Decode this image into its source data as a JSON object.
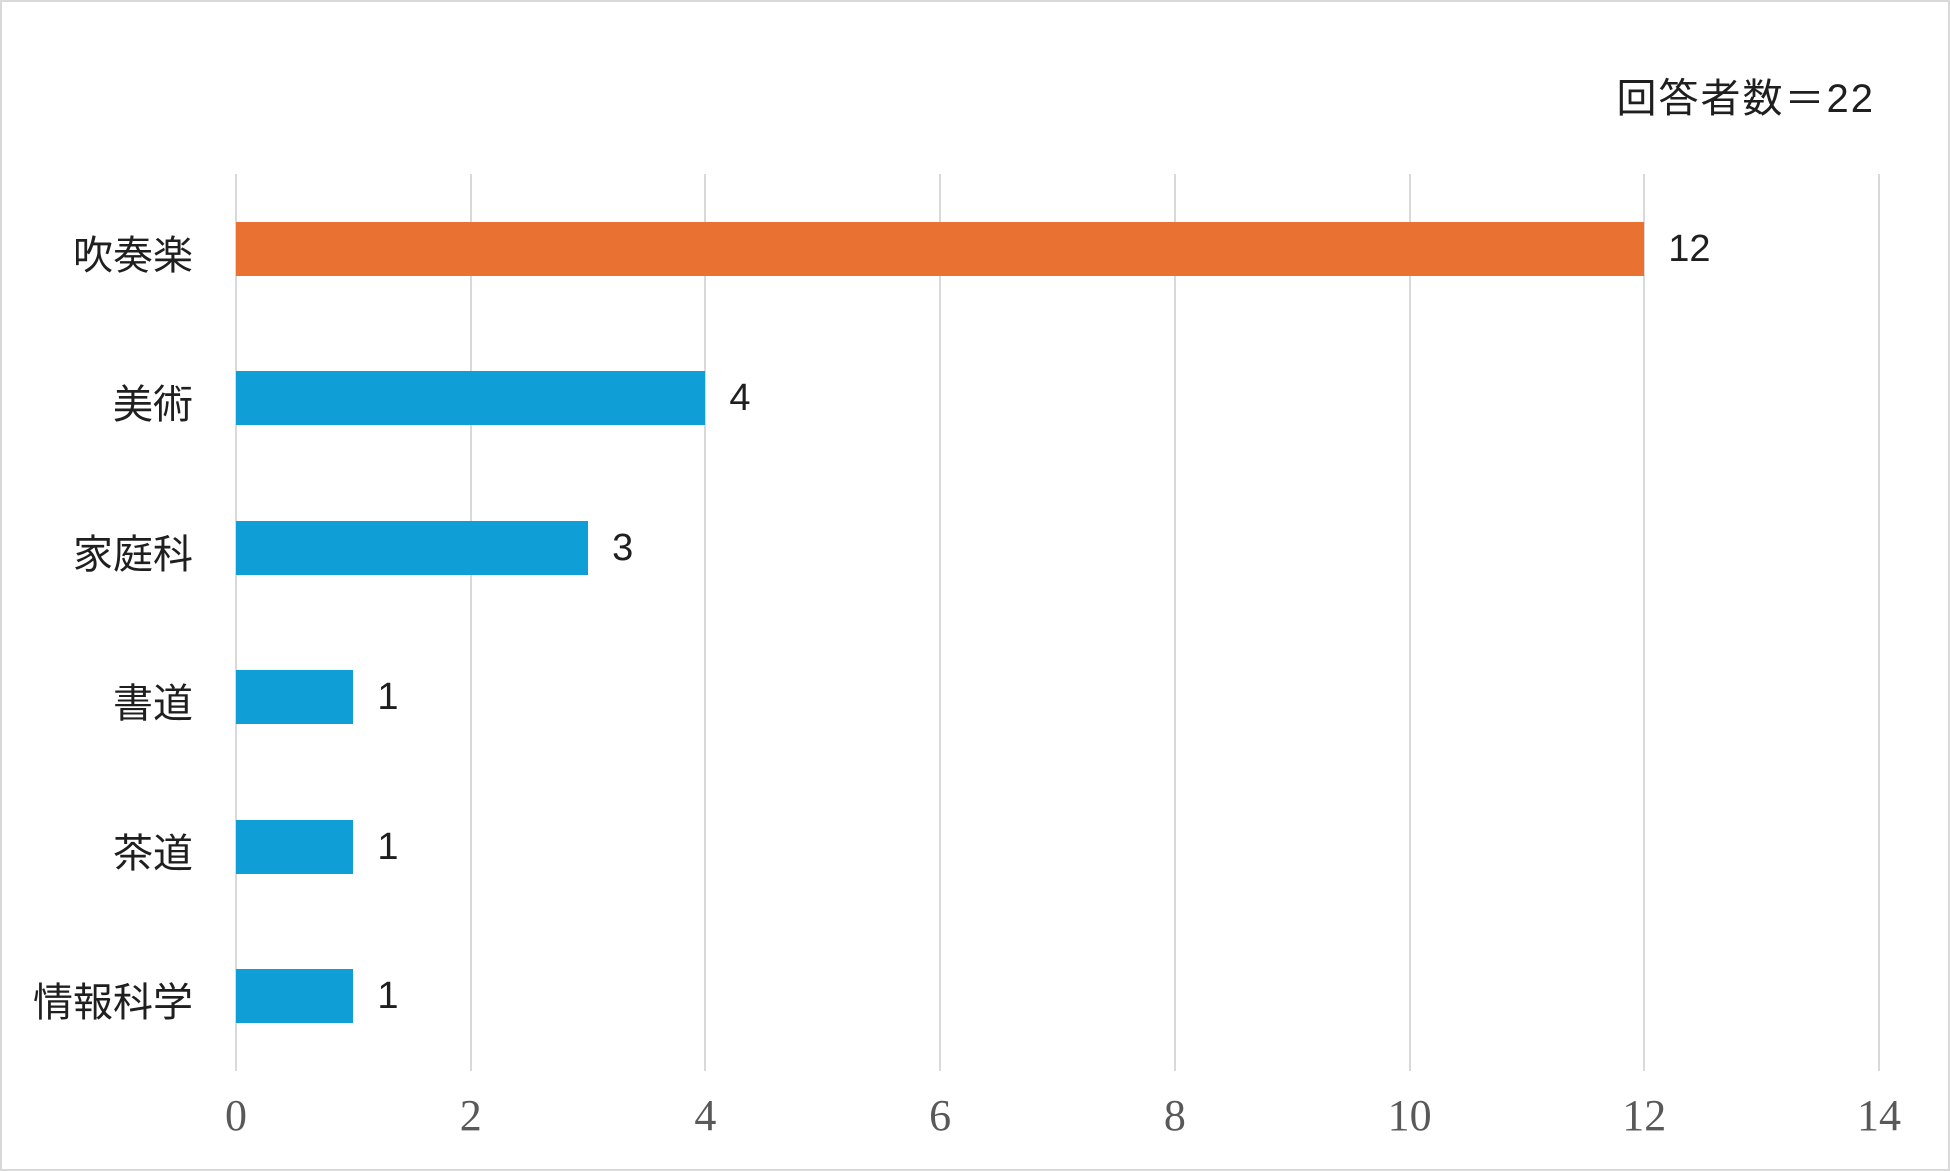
{
  "chart_data": {
    "type": "bar",
    "orientation": "horizontal",
    "title": "",
    "annotation": "回答者数＝22",
    "categories": [
      "吹奏楽",
      "美術",
      "家庭科",
      "書道",
      "茶道",
      "情報科学"
    ],
    "values": [
      12,
      4,
      3,
      1,
      1,
      1
    ],
    "value_labels": [
      "12",
      "4",
      "3",
      "1",
      "1",
      "1"
    ],
    "highlight_index": 0,
    "x_ticks": [
      0,
      2,
      4,
      6,
      8,
      10,
      12,
      14
    ],
    "xlim": [
      0,
      14
    ],
    "xlabel": "",
    "ylabel": "",
    "grid": "vertical-only",
    "legend": "none",
    "colors": {
      "bar_default": "#0F9ED5",
      "bar_highlight": "#E97132",
      "gridline": "#D9D9D9",
      "axis_text": "#595959",
      "label_text": "#1F1F1F",
      "background": "#FFFFFF",
      "frame_border": "#D9D9D9"
    }
  }
}
